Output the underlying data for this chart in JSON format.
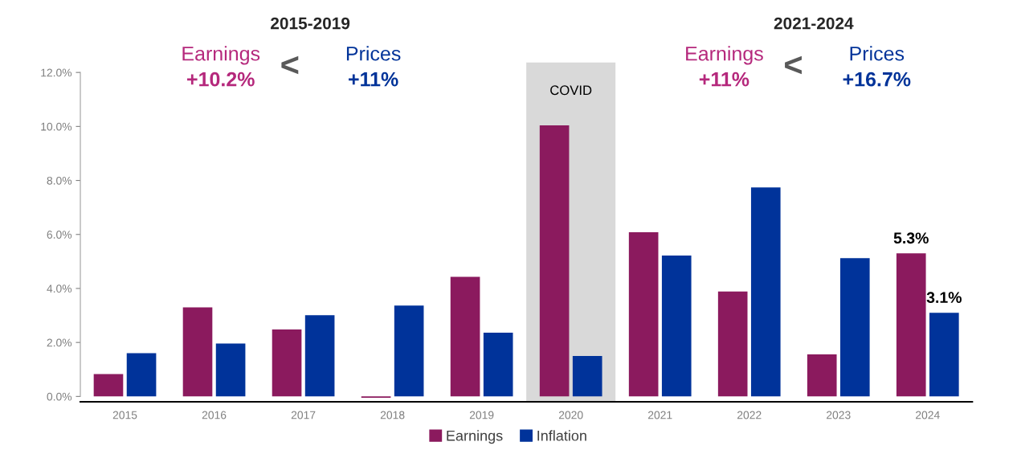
{
  "chart_data": {
    "type": "bar",
    "categories": [
      "2015",
      "2016",
      "2017",
      "2018",
      "2019",
      "2020",
      "2021",
      "2022",
      "2023",
      "2024"
    ],
    "series": [
      {
        "name": "Earnings",
        "color": "#8b1a5e",
        "values": [
          0.83,
          3.3,
          2.48,
          -0.05,
          4.43,
          10.04,
          6.08,
          3.89,
          1.56,
          5.3
        ],
        "value_labels": [
          null,
          null,
          null,
          null,
          null,
          null,
          null,
          null,
          null,
          "5.3%"
        ]
      },
      {
        "name": "Inflation",
        "color": "#00339a",
        "values": [
          1.6,
          1.96,
          3.01,
          3.37,
          2.36,
          1.5,
          5.22,
          7.74,
          5.12,
          3.1
        ],
        "value_labels": [
          null,
          null,
          null,
          null,
          null,
          null,
          null,
          null,
          null,
          "3.1%"
        ]
      }
    ],
    "ylim": [
      -0.2,
      12
    ],
    "yticks": [
      {
        "value": 0,
        "label": "0.0%"
      },
      {
        "value": 2,
        "label": "2.0%"
      },
      {
        "value": 4,
        "label": "4.0%"
      },
      {
        "value": 6,
        "label": "6.0%"
      },
      {
        "value": 8,
        "label": "8.0%"
      },
      {
        "value": 10,
        "label": "10.0%"
      },
      {
        "value": 12,
        "label": "12.0%"
      }
    ],
    "bands": [
      {
        "axis": "x",
        "from": "2020",
        "to": "2020",
        "label": "COVID",
        "color": "#d9d9d9"
      }
    ],
    "annotations": [
      "2015-2019",
      "Earnings\n+10.2%",
      "<",
      "Prices\n+11%",
      "2021-2024",
      "Earnings\n+11%",
      "<",
      "Prices\n+16.7%"
    ],
    "grid": false,
    "legend": "bottom"
  }
}
